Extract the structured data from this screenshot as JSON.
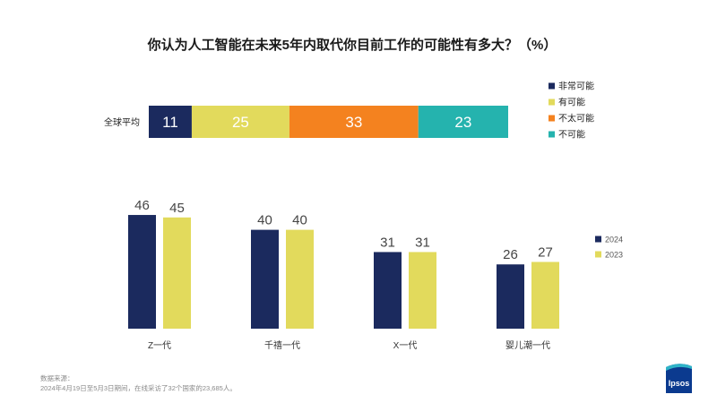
{
  "title": "你认为人工智能在未来5年内取代你目前工作的可能性有多大？（%）",
  "chart_data": [
    {
      "type": "bar",
      "orientation": "horizontal",
      "stacked": true,
      "categories": [
        "全球平均"
      ],
      "series": [
        {
          "name": "非常可能",
          "values": [
            11
          ],
          "color": "#1b2a5e"
        },
        {
          "name": "有可能",
          "values": [
            25
          ],
          "color": "#e2da5c"
        },
        {
          "name": "不太可能",
          "values": [
            33
          ],
          "color": "#f4821f"
        },
        {
          "name": "不可能",
          "values": [
            23
          ],
          "color": "#25b3ae"
        }
      ],
      "legend": "right",
      "grid": false
    },
    {
      "type": "bar",
      "orientation": "vertical",
      "stacked": false,
      "categories": [
        "Z一代",
        "千禧一代",
        "X一代",
        "婴儿潮一代"
      ],
      "series": [
        {
          "name": "2024",
          "values": [
            46,
            40,
            31,
            26
          ],
          "color": "#1b2a5e"
        },
        {
          "name": "2023",
          "values": [
            45,
            40,
            31,
            27
          ],
          "color": "#e2da5c"
        }
      ],
      "ylim": [
        0,
        50
      ],
      "legend": "right",
      "grid": false
    }
  ],
  "footer": {
    "source_label": "数据来源：",
    "source_text": "2024年4月19日至5月3日期间，在线采访了32个国家的23,685人。"
  },
  "logo": {
    "text": "Ipsos",
    "colors": {
      "body": "#0b3a8f",
      "accent": "#2fb4c8"
    }
  }
}
